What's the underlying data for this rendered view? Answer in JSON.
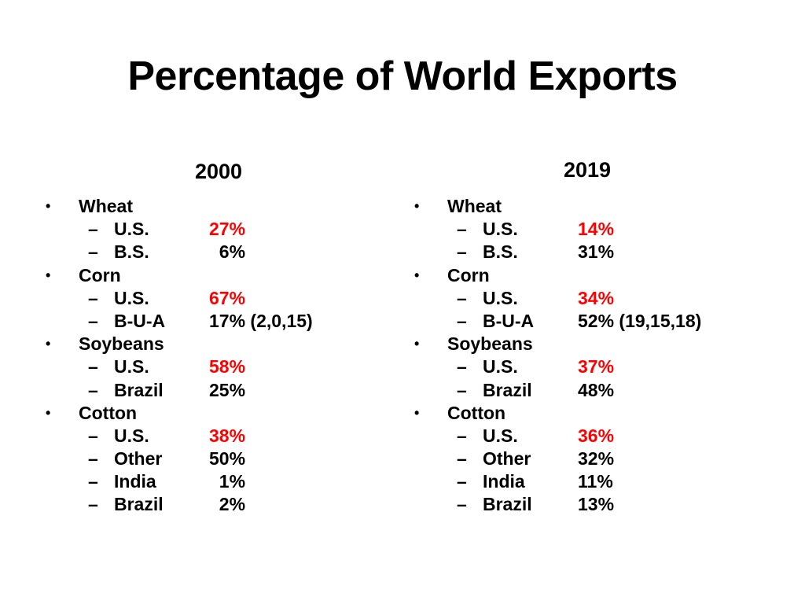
{
  "title": "Percentage of World Exports",
  "highlight_color": "#ff0000",
  "columns": [
    {
      "year": "2000",
      "categories": [
        {
          "name": "Wheat",
          "rows": [
            {
              "label": "U.S.",
              "value": "27%",
              "highlight": true
            },
            {
              "label": "B.S.",
              "value": "6%",
              "highlight": false,
              "pad": "0"
            }
          ]
        },
        {
          "name": "Corn",
          "rows": [
            {
              "label": "U.S.",
              "value": "67%",
              "highlight": true
            },
            {
              "label": "B-U-A",
              "value": "17% (2,0,15)",
              "highlight": false
            }
          ]
        },
        {
          "name": "Soybeans",
          "rows": [
            {
              "label": "U.S.",
              "value": "58%",
              "highlight": true
            },
            {
              "label": "Brazil",
              "value": "25%",
              "highlight": false
            }
          ]
        },
        {
          "name": "Cotton",
          "rows": [
            {
              "label": "U.S.",
              "value": "38%",
              "highlight": true
            },
            {
              "label": "Other",
              "value": "50%",
              "highlight": false
            },
            {
              "label": "India",
              "value": "1%",
              "highlight": false,
              "pad": "0"
            },
            {
              "label": "Brazil",
              "value": "2%",
              "highlight": false,
              "pad": "0"
            }
          ]
        }
      ]
    },
    {
      "year": "2019",
      "categories": [
        {
          "name": "Wheat",
          "rows": [
            {
              "label": "U.S.",
              "value": "14%",
              "highlight": true
            },
            {
              "label": "B.S.",
              "value": "31%",
              "highlight": false
            }
          ]
        },
        {
          "name": "Corn",
          "rows": [
            {
              "label": "U.S.",
              "value": "34%",
              "highlight": true
            },
            {
              "label": "B-U-A",
              "value": "52% (19,15,18)",
              "highlight": false
            }
          ]
        },
        {
          "name": "Soybeans",
          "rows": [
            {
              "label": "U.S.",
              "value": "37%",
              "highlight": true
            },
            {
              "label": "Brazil",
              "value": "48%",
              "highlight": false
            }
          ]
        },
        {
          "name": "Cotton",
          "rows": [
            {
              "label": "U.S.",
              "value": "36%",
              "highlight": true
            },
            {
              "label": "Other",
              "value": "32%",
              "highlight": false
            },
            {
              "label": "India",
              "value": "11%",
              "highlight": false
            },
            {
              "label": "Brazil",
              "value": "13%",
              "highlight": false
            }
          ]
        }
      ]
    }
  ]
}
